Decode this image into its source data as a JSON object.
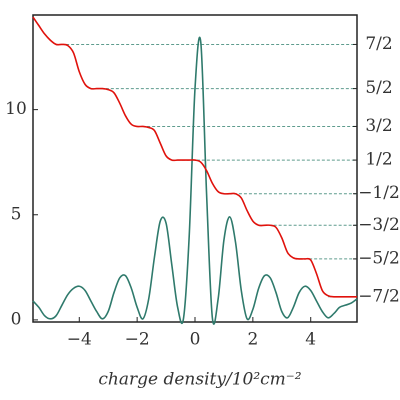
{
  "chart_data": {
    "type": "line",
    "xlabel": "charge density/10²cm⁻²",
    "x": [
      -5.6,
      -5.4,
      -5.2,
      -5.0,
      -4.8,
      -4.6,
      -4.4,
      -4.2,
      -4.0,
      -3.8,
      -3.6,
      -3.4,
      -3.2,
      -3.0,
      -2.8,
      -2.6,
      -2.4,
      -2.2,
      -2.0,
      -1.8,
      -1.6,
      -1.4,
      -1.2,
      -1.0,
      -0.8,
      -0.6,
      -0.4,
      -0.2,
      0,
      0.2,
      0.4,
      0.6,
      0.8,
      1.0,
      1.2,
      1.4,
      1.6,
      1.8,
      2.0,
      2.2,
      2.4,
      2.6,
      2.8,
      3.0,
      3.2,
      3.4,
      3.6,
      3.8,
      4.0,
      4.2,
      4.4,
      4.6,
      4.8,
      5.0,
      5.2,
      5.4,
      5.6
    ],
    "series": [
      {
        "color": "#2f7a6c",
        "values": [
          0.9,
          0.6,
          0.2,
          0.05,
          0.2,
          0.7,
          1.2,
          1.5,
          1.6,
          1.4,
          0.9,
          0.4,
          0.05,
          0.4,
          1.3,
          2.0,
          2.1,
          1.5,
          0.6,
          0.05,
          1.0,
          3.0,
          4.7,
          4.6,
          2.6,
          0.6,
          0.05,
          4.0,
          11.0,
          13.2,
          6.0,
          0.1,
          1.0,
          3.8,
          4.9,
          3.7,
          1.4,
          0.05,
          0.5,
          1.5,
          2.1,
          2.0,
          1.3,
          0.4,
          0.1,
          0.6,
          1.3,
          1.6,
          1.4,
          0.9,
          0.4,
          0.1,
          0.3,
          0.6,
          0.7,
          0.8,
          1.0
        ]
      },
      {
        "color": "#e0120c",
        "values": [
          14.4,
          14.0,
          13.6,
          13.3,
          13.1,
          13.1,
          13.05,
          12.7,
          11.8,
          11.2,
          11.0,
          11.0,
          11.0,
          10.95,
          10.8,
          10.3,
          9.7,
          9.3,
          9.2,
          9.2,
          9.15,
          9.0,
          8.4,
          7.8,
          7.6,
          7.6,
          7.6,
          7.6,
          7.6,
          7.5,
          7.1,
          6.5,
          6.1,
          6.0,
          6.0,
          6.0,
          5.8,
          5.2,
          4.7,
          4.5,
          4.5,
          4.5,
          4.4,
          3.9,
          3.2,
          2.95,
          2.9,
          2.9,
          2.85,
          2.2,
          1.4,
          1.15,
          1.1,
          1.1,
          1.1,
          1.1,
          1.1
        ]
      }
    ],
    "xlim": [
      -5.6,
      5.6
    ],
    "xticks": [
      {
        "value": -4,
        "label": "−4"
      },
      {
        "value": -2,
        "label": "−2"
      },
      0,
      2,
      4
    ],
    "ylim": [
      -0.1,
      14.5
    ],
    "yticks": [
      0,
      5,
      10
    ],
    "y2lim": [
      -0.1,
      14.5
    ],
    "y2ticks": [
      {
        "value": 13.1,
        "label": "7/2"
      },
      {
        "value": 11.0,
        "label": "5/2"
      },
      {
        "value": 9.2,
        "label": "3/2"
      },
      {
        "value": 7.6,
        "label": "1/2"
      },
      {
        "value": 6.0,
        "label": "−1/2"
      },
      {
        "value": 4.5,
        "label": "−3/2"
      },
      {
        "value": 2.9,
        "label": "−5/2"
      },
      {
        "value": 1.1,
        "label": "−7/2"
      }
    ],
    "y2grid_color": "#5f9c8e"
  }
}
